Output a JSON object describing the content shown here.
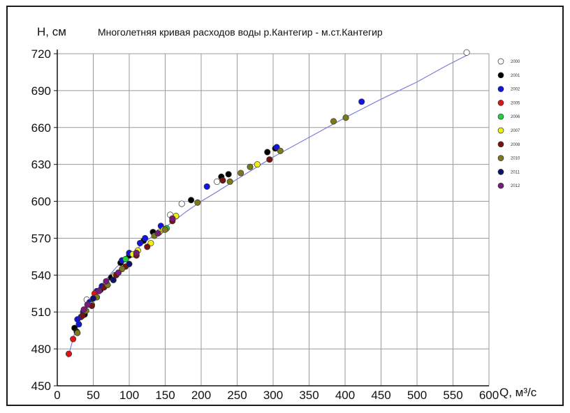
{
  "chart_data": {
    "type": "scatter",
    "title": "Многолетняя кривая расходов воды  р.Кантегир  - м.ст.Кантегир",
    "ylabel": "H, см",
    "xlabel": "Q, м³/с",
    "xlim": [
      0,
      600
    ],
    "ylim": [
      450,
      720
    ],
    "xticks": [
      "0",
      "50",
      "100",
      "150",
      "200",
      "250",
      "300",
      "350",
      "400",
      "450",
      "500",
      "550",
      "600"
    ],
    "yticks": [
      "450",
      "480",
      "510",
      "540",
      "570",
      "600",
      "630",
      "660",
      "690",
      "720"
    ],
    "grid": true,
    "legend_position": "right",
    "curve": {
      "color": "#7b7fd8",
      "points": [
        [
          15,
          473
        ],
        [
          20,
          484
        ],
        [
          25,
          495
        ],
        [
          30,
          503
        ],
        [
          40,
          514
        ],
        [
          50,
          523
        ],
        [
          60,
          531
        ],
        [
          70,
          538
        ],
        [
          80,
          545
        ],
        [
          90,
          551
        ],
        [
          100,
          556
        ],
        [
          120,
          566
        ],
        [
          140,
          575
        ],
        [
          160,
          583
        ],
        [
          180,
          592
        ],
        [
          200,
          600
        ],
        [
          220,
          607
        ],
        [
          250,
          618
        ],
        [
          300,
          636
        ],
        [
          350,
          652
        ],
        [
          400,
          668
        ],
        [
          450,
          683
        ],
        [
          500,
          697
        ],
        [
          540,
          710
        ],
        [
          570,
          719
        ]
      ]
    },
    "series": [
      {
        "name": "2000",
        "color": "#ffffff",
        "points": [
          [
            569,
            721
          ],
          [
            41,
            520
          ],
          [
            157,
            589
          ],
          [
            173,
            598
          ],
          [
            222,
            616
          ]
        ]
      },
      {
        "name": "2001",
        "color": "#000000",
        "points": [
          [
            24,
            497
          ],
          [
            38,
            508
          ],
          [
            60,
            528
          ],
          [
            75,
            538
          ],
          [
            88,
            550
          ],
          [
            100,
            556
          ],
          [
            120,
            568
          ],
          [
            133,
            575
          ],
          [
            186,
            601
          ],
          [
            228,
            620
          ],
          [
            238,
            622
          ],
          [
            292,
            640
          ],
          [
            303,
            643
          ],
          [
            27,
            494
          ]
        ]
      },
      {
        "name": "2002",
        "color": "#1414e0",
        "points": [
          [
            28,
            504
          ],
          [
            30,
            500
          ],
          [
            36,
            510
          ],
          [
            45,
            518
          ],
          [
            55,
            527
          ],
          [
            62,
            531
          ],
          [
            90,
            552
          ],
          [
            100,
            558
          ],
          [
            115,
            566
          ],
          [
            122,
            570
          ],
          [
            144,
            580
          ],
          [
            208,
            612
          ],
          [
            305,
            644
          ],
          [
            423,
            681
          ],
          [
            33,
            506
          ]
        ]
      },
      {
        "name": "2005",
        "color": "#e01414",
        "points": [
          [
            16,
            476
          ],
          [
            22,
            488
          ],
          [
            52,
            525
          ]
        ]
      },
      {
        "name": "2006",
        "color": "#22d040",
        "points": [
          [
            48,
            516
          ],
          [
            95,
            553
          ],
          [
            152,
            578
          ]
        ]
      },
      {
        "name": "2007",
        "color": "#f0f010",
        "points": [
          [
            80,
            540
          ],
          [
            105,
            557
          ],
          [
            112,
            560
          ],
          [
            130,
            566
          ],
          [
            142,
            575
          ],
          [
            165,
            588
          ],
          [
            278,
            630
          ],
          [
            148,
            577
          ]
        ]
      },
      {
        "name": "2008",
        "color": "#7a1010",
        "points": [
          [
            35,
            507
          ],
          [
            65,
            530
          ],
          [
            82,
            540
          ],
          [
            95,
            547
          ],
          [
            110,
            556
          ],
          [
            125,
            563
          ],
          [
            160,
            584
          ],
          [
            230,
            617
          ],
          [
            295,
            634
          ],
          [
            48,
            515
          ]
        ]
      },
      {
        "name": "2010",
        "color": "#7a7a1a",
        "points": [
          [
            28,
            493
          ],
          [
            40,
            511
          ],
          [
            55,
            522
          ],
          [
            70,
            532
          ],
          [
            90,
            545
          ],
          [
            135,
            572
          ],
          [
            195,
            599
          ],
          [
            240,
            616
          ],
          [
            255,
            623
          ],
          [
            268,
            628
          ],
          [
            310,
            641
          ],
          [
            384,
            665
          ],
          [
            401,
            668
          ],
          [
            150,
            577
          ]
        ]
      },
      {
        "name": "2011",
        "color": "#101070",
        "points": [
          [
            50,
            521
          ],
          [
            78,
            536
          ],
          [
            100,
            549
          ]
        ]
      },
      {
        "name": "2012",
        "color": "#7a1a7a",
        "points": [
          [
            42,
            516
          ],
          [
            58,
            527
          ],
          [
            68,
            535
          ],
          [
            85,
            542
          ],
          [
            110,
            558
          ],
          [
            140,
            574
          ],
          [
            160,
            586
          ],
          [
            37,
            512
          ]
        ]
      }
    ]
  }
}
